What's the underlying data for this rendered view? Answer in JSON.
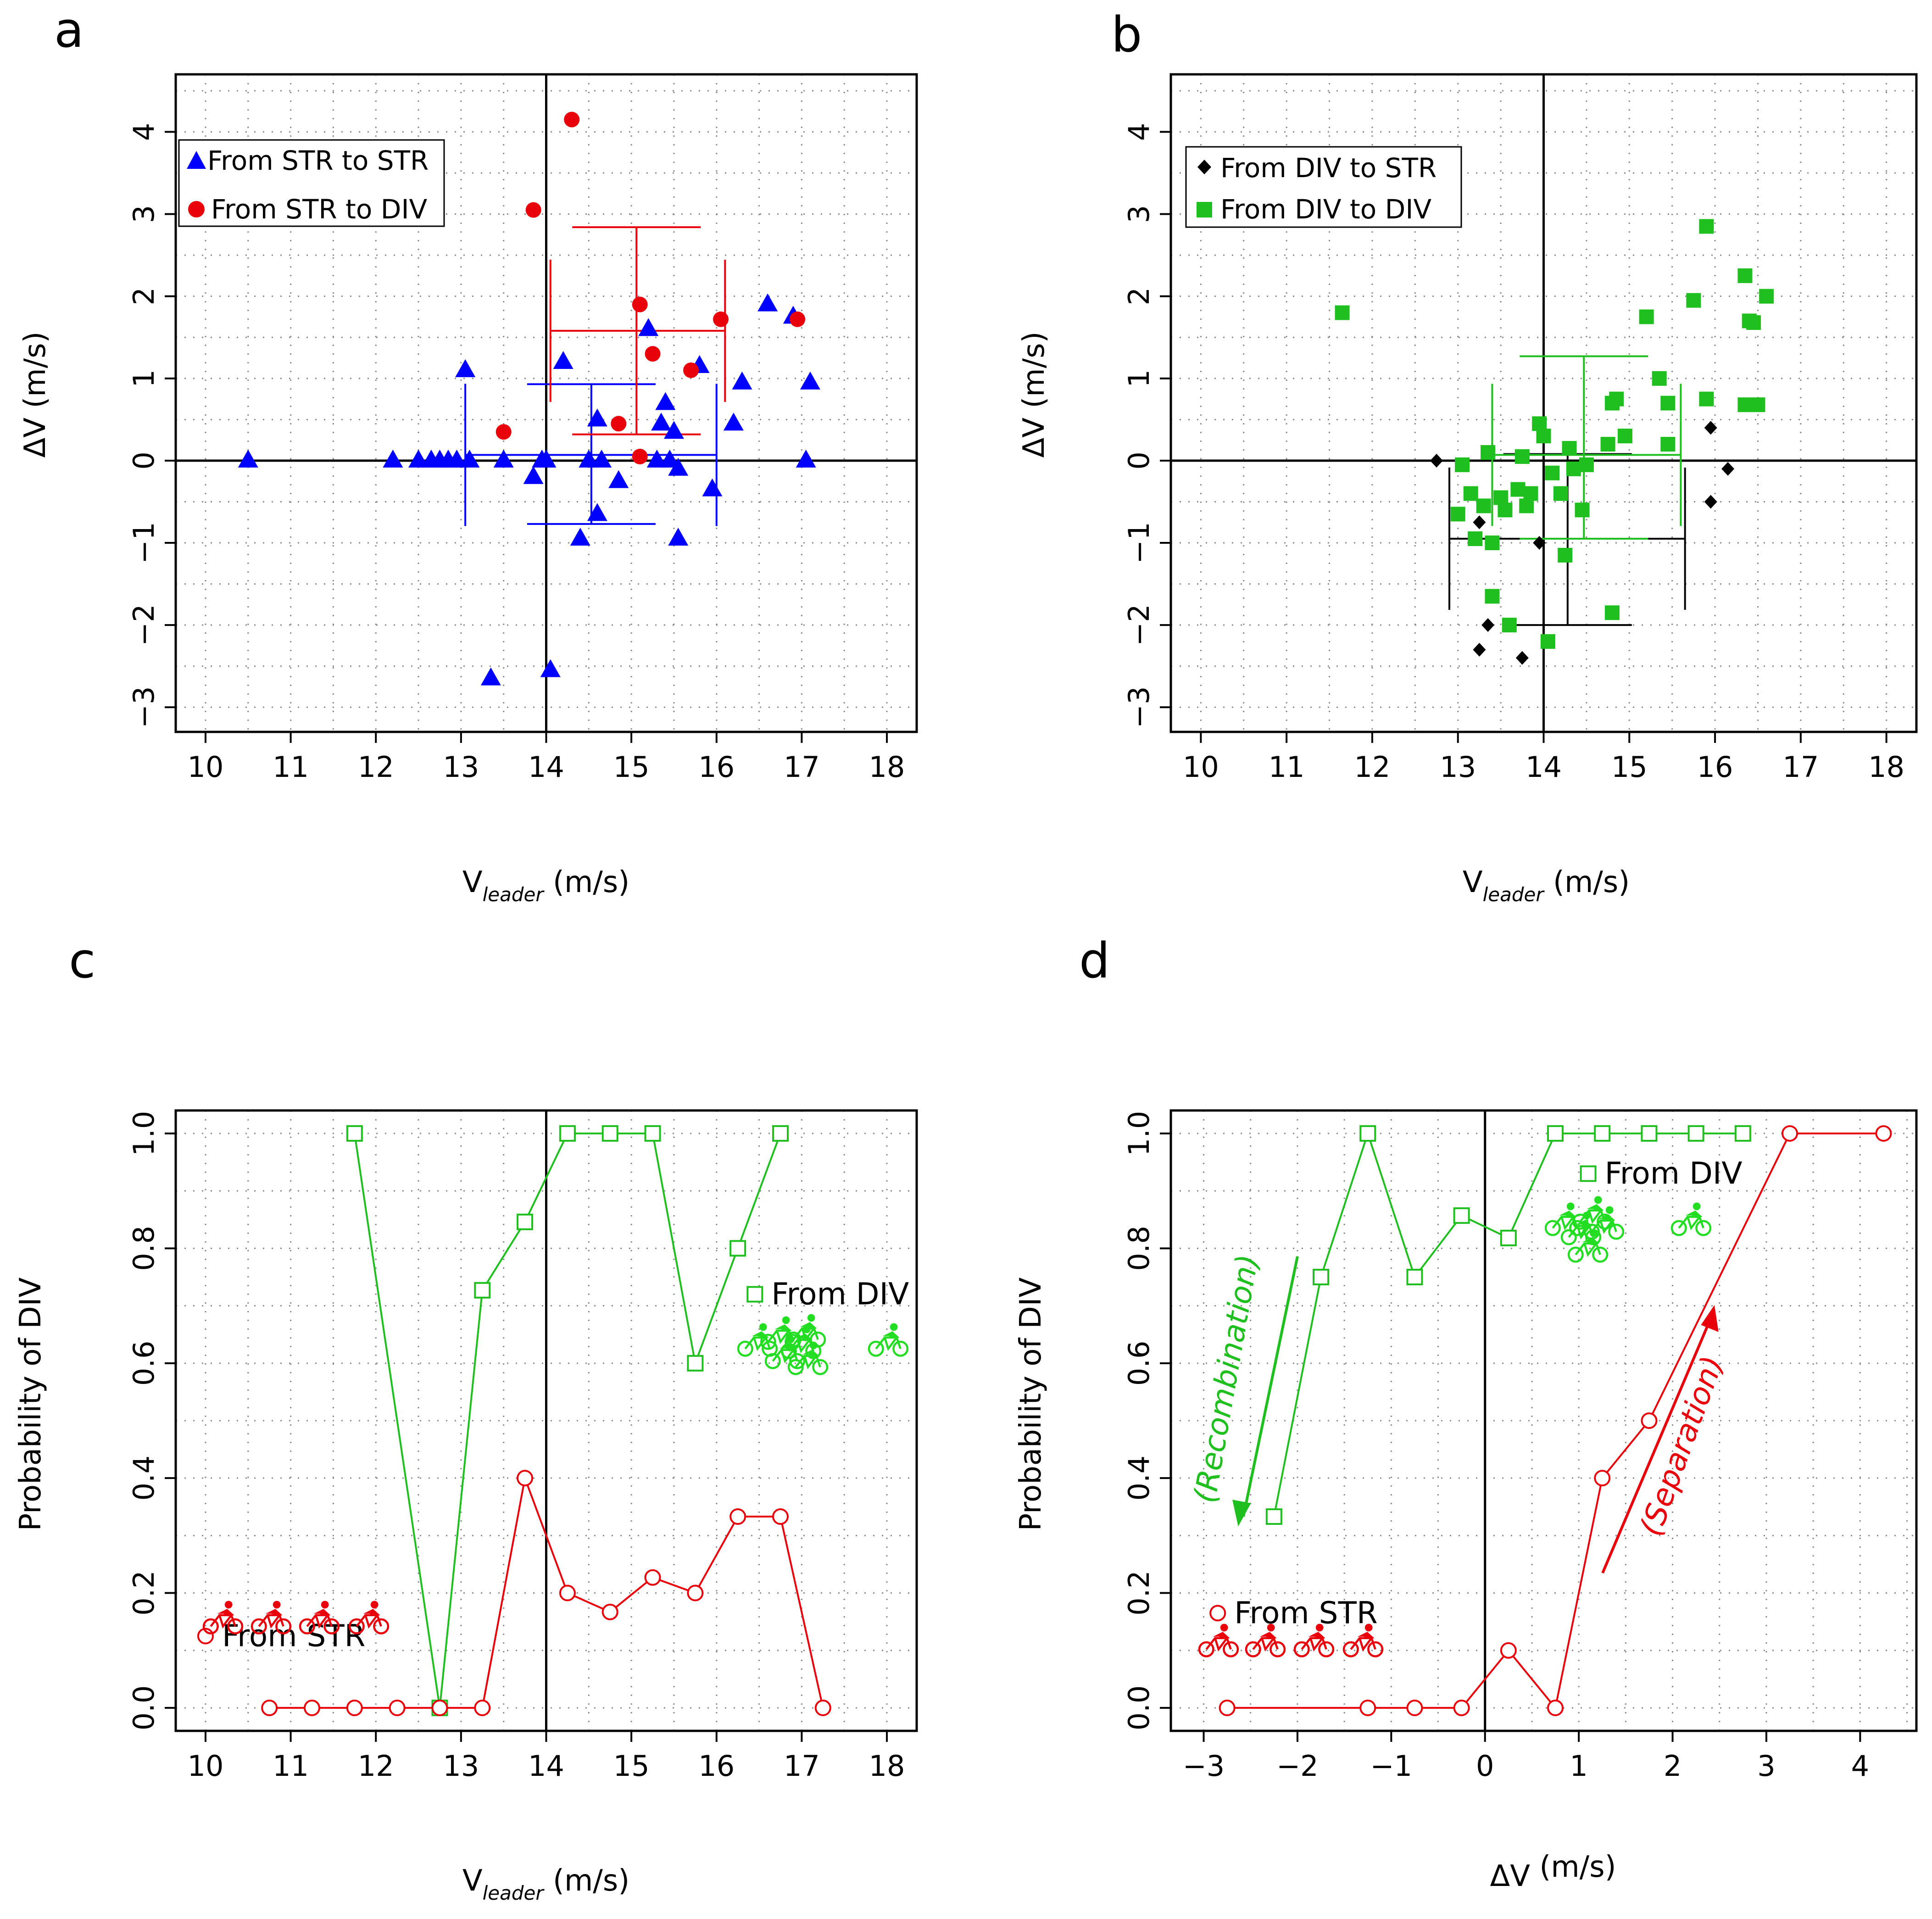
{
  "colors": {
    "blue": "#0000ff",
    "red": "#e8000b",
    "green": "#1fbf1f",
    "black": "#000000",
    "grid": "#8a8a8a",
    "lightgreen": "#22dd22"
  },
  "chart_data": [
    {
      "id": "a",
      "panel_label": "a",
      "type": "scatter",
      "xlabel_main": "V",
      "xlabel_sub": "leader",
      "xlabel_unit": " (m/s)",
      "ylabel": "ΔV (m/s)",
      "xlim": [
        9.65,
        18.35
      ],
      "ylim": [
        -3.3,
        4.7
      ],
      "xticks": [
        "10",
        "11",
        "12",
        "13",
        "14",
        "15",
        "16",
        "17",
        "18"
      ],
      "yticks": [
        "−3",
        "−2",
        "−1",
        "0",
        "1",
        "2",
        "3",
        "4"
      ],
      "vline": 14,
      "hline": 0,
      "legend": [
        {
          "label": "From STR to STR",
          "marker": "triangle",
          "color": "#0000ff"
        },
        {
          "label": "From STR to DIV",
          "marker": "circle",
          "color": "#e8000b"
        }
      ],
      "series": [
        {
          "name": "From STR to STR",
          "marker": "triangle",
          "color": "#0000ff",
          "points": [
            [
              10.5,
              0.0
            ],
            [
              12.2,
              0.0
            ],
            [
              12.5,
              0.0
            ],
            [
              12.65,
              0.0
            ],
            [
              12.75,
              0.0
            ],
            [
              12.85,
              0.0
            ],
            [
              12.95,
              0.0
            ],
            [
              13.1,
              0.0
            ],
            [
              13.05,
              1.1
            ],
            [
              13.5,
              0.0
            ],
            [
              13.85,
              -0.2
            ],
            [
              13.95,
              0.0
            ],
            [
              14.0,
              0.0
            ],
            [
              14.2,
              1.2
            ],
            [
              14.4,
              -0.95
            ],
            [
              14.5,
              0.0
            ],
            [
              14.6,
              0.5
            ],
            [
              14.65,
              0.0
            ],
            [
              14.6,
              -0.65
            ],
            [
              14.85,
              -0.25
            ],
            [
              15.2,
              1.6
            ],
            [
              15.3,
              0.0
            ],
            [
              15.35,
              0.45
            ],
            [
              15.4,
              0.7
            ],
            [
              15.45,
              0.0
            ],
            [
              15.5,
              0.35
            ],
            [
              15.55,
              -0.1
            ],
            [
              15.55,
              -0.95
            ],
            [
              15.8,
              1.15
            ],
            [
              15.95,
              -0.35
            ],
            [
              16.2,
              0.45
            ],
            [
              16.3,
              0.95
            ],
            [
              16.6,
              1.9
            ],
            [
              16.9,
              1.75
            ],
            [
              17.05,
              0.0
            ],
            [
              17.1,
              0.95
            ],
            [
              13.35,
              -2.65
            ],
            [
              14.05,
              -2.55
            ]
          ]
        },
        {
          "name": "From STR to DIV",
          "marker": "circle",
          "color": "#e8000b",
          "points": [
            [
              14.3,
              4.15
            ],
            [
              13.85,
              3.05
            ],
            [
              13.5,
              0.35
            ],
            [
              14.85,
              0.45
            ],
            [
              15.1,
              1.9
            ],
            [
              15.25,
              1.3
            ],
            [
              15.1,
              0.05
            ],
            [
              15.7,
              1.1
            ],
            [
              16.05,
              1.72
            ],
            [
              16.95,
              1.72
            ]
          ]
        }
      ],
      "crosses": [
        {
          "color": "#0000ff",
          "mean": [
            14.53,
            0.07
          ],
          "xsd": [
            13.05,
            16.0
          ],
          "ysd": [
            -0.77,
            0.93
          ]
        },
        {
          "color": "#e8000b",
          "mean": [
            15.06,
            1.58
          ],
          "xsd": [
            14.05,
            16.1
          ],
          "ysd": [
            0.32,
            2.84
          ]
        }
      ]
    },
    {
      "id": "b",
      "panel_label": "b",
      "type": "scatter",
      "xlabel_main": "V",
      "xlabel_sub": "leader",
      "xlabel_unit": " (m/s)",
      "ylabel": "ΔV (m/s)",
      "xlim": [
        9.65,
        18.35
      ],
      "ylim": [
        -3.3,
        4.7
      ],
      "xticks": [
        "10",
        "11",
        "12",
        "13",
        "14",
        "15",
        "16",
        "17",
        "18"
      ],
      "yticks": [
        "−3",
        "−2",
        "−1",
        "0",
        "1",
        "2",
        "3",
        "4"
      ],
      "vline": 14,
      "hline": 0,
      "legend": [
        {
          "label": "From DIV to STR",
          "marker": "diamond",
          "color": "#000000"
        },
        {
          "label": "From DIV to DIV",
          "marker": "square",
          "color": "#1fbf1f"
        }
      ],
      "series": [
        {
          "name": "From DIV to STR",
          "marker": "diamond",
          "color": "#000000",
          "points": [
            [
              12.75,
              0.0
            ],
            [
              13.25,
              -0.75
            ],
            [
              13.35,
              -2.0
            ],
            [
              13.25,
              -2.3
            ],
            [
              13.75,
              -2.4
            ],
            [
              13.95,
              -1.0
            ],
            [
              15.95,
              0.4
            ],
            [
              15.95,
              -0.5
            ],
            [
              16.15,
              -0.1
            ]
          ]
        },
        {
          "name": "From DIV to DIV",
          "marker": "square",
          "color": "#1fbf1f",
          "points": [
            [
              11.65,
              1.8
            ],
            [
              13.0,
              -0.65
            ],
            [
              13.05,
              -0.05
            ],
            [
              13.15,
              -0.4
            ],
            [
              13.2,
              -0.95
            ],
            [
              13.3,
              -0.55
            ],
            [
              13.35,
              0.1
            ],
            [
              13.4,
              -1.0
            ],
            [
              13.4,
              -1.65
            ],
            [
              13.5,
              -0.45
            ],
            [
              13.55,
              -0.6
            ],
            [
              13.6,
              -2.0
            ],
            [
              13.7,
              -0.35
            ],
            [
              13.75,
              0.05
            ],
            [
              13.8,
              -0.55
            ],
            [
              13.85,
              -0.4
            ],
            [
              13.95,
              0.45
            ],
            [
              14.0,
              0.3
            ],
            [
              14.05,
              -2.2
            ],
            [
              14.1,
              -0.15
            ],
            [
              14.2,
              -0.4
            ],
            [
              14.25,
              -1.15
            ],
            [
              14.3,
              0.15
            ],
            [
              14.35,
              -0.1
            ],
            [
              14.45,
              -0.6
            ],
            [
              14.5,
              -0.05
            ],
            [
              14.75,
              0.2
            ],
            [
              14.8,
              0.7
            ],
            [
              14.85,
              0.75
            ],
            [
              14.8,
              -1.85
            ],
            [
              14.95,
              0.3
            ],
            [
              15.2,
              1.75
            ],
            [
              15.35,
              1.0
            ],
            [
              15.45,
              0.7
            ],
            [
              15.45,
              0.2
            ],
            [
              15.75,
              1.95
            ],
            [
              15.9,
              2.85
            ],
            [
              15.9,
              0.75
            ],
            [
              16.35,
              2.25
            ],
            [
              16.4,
              1.7
            ],
            [
              16.45,
              1.68
            ],
            [
              16.35,
              0.68
            ],
            [
              16.5,
              0.68
            ],
            [
              16.6,
              2.0
            ]
          ]
        }
      ],
      "crosses": [
        {
          "color": "#000000",
          "mean": [
            14.28,
            -0.95
          ],
          "xsd": [
            12.9,
            15.65
          ],
          "ysd": [
            -2.0,
            0.08
          ]
        },
        {
          "color": "#1fbf1f",
          "mean": [
            14.47,
            0.07
          ],
          "xsd": [
            13.4,
            15.6
          ],
          "ysd": [
            -0.95,
            1.27
          ]
        }
      ]
    },
    {
      "id": "c",
      "panel_label": "c",
      "type": "line",
      "xlabel_main": "V",
      "xlabel_sub": "leader",
      "xlabel_unit": " (m/s)",
      "ylabel": "Probability of DIV",
      "xlim": [
        9.65,
        18.35
      ],
      "ylim": [
        -0.04,
        1.04
      ],
      "xticks": [
        "10",
        "11",
        "12",
        "13",
        "14",
        "15",
        "16",
        "17",
        "18"
      ],
      "yticks": [
        "0.0",
        "0.2",
        "0.4",
        "0.6",
        "0.8",
        "1.0"
      ],
      "vline": 14,
      "hline": null,
      "series": [
        {
          "name": "From DIV",
          "marker": "square-open",
          "color": "#1fbf1f",
          "x": [
            11.75,
            12.75,
            13.25,
            13.75,
            14.25,
            14.75,
            15.25,
            15.75,
            16.25,
            16.75
          ],
          "y": [
            1.0,
            0.0,
            0.727,
            0.846,
            1.0,
            1.0,
            1.0,
            0.6,
            0.8,
            1.0
          ]
        },
        {
          "name": "From STR",
          "marker": "circle-open",
          "color": "#e8000b",
          "x": [
            10.75,
            11.25,
            11.75,
            12.25,
            12.75,
            13.25,
            13.75,
            14.25,
            14.75,
            15.25,
            15.75,
            16.25,
            16.75,
            17.25
          ],
          "y": [
            0.0,
            0.0,
            0.0,
            0.0,
            0.0,
            0.0,
            0.4,
            0.2,
            0.167,
            0.227,
            0.2,
            0.333,
            0.333,
            0.0
          ]
        }
      ],
      "annotations": [
        {
          "text": "From DIV",
          "x": 16.45,
          "y": 0.72,
          "color": "#1fbf1f",
          "marker": "square-open"
        },
        {
          "text": "From STR",
          "x": 10.0,
          "y": 0.125,
          "color": "#e8000b",
          "marker": "circle-open"
        }
      ]
    },
    {
      "id": "d",
      "panel_label": "d",
      "type": "line",
      "xlabel_main": "ΔV",
      "xlabel_sub": "",
      "xlabel_unit": " (m/s)",
      "ylabel": "Probability of DIV",
      "xlim": [
        -3.35,
        4.6
      ],
      "ylim": [
        -0.04,
        1.04
      ],
      "xticks": [
        "−3",
        "−2",
        "−1",
        "0",
        "1",
        "2",
        "3",
        "4"
      ],
      "yticks": [
        "0.0",
        "0.2",
        "0.4",
        "0.6",
        "0.8",
        "1.0"
      ],
      "vline": 0,
      "hline": null,
      "series": [
        {
          "name": "From DIV",
          "marker": "square-open",
          "color": "#1fbf1f",
          "x": [
            -2.25,
            -1.75,
            -1.25,
            -0.75,
            -0.25,
            0.25,
            0.75,
            1.25,
            1.75,
            2.25,
            2.75
          ],
          "y": [
            0.333,
            0.75,
            1.0,
            0.75,
            0.857,
            0.818,
            1.0,
            1.0,
            1.0,
            1.0,
            1.0
          ]
        },
        {
          "name": "From STR",
          "marker": "circle-open",
          "color": "#e8000b",
          "x": [
            -2.75,
            -1.25,
            -0.75,
            -0.25,
            0.25,
            0.75,
            1.25,
            1.75,
            3.25,
            4.25
          ],
          "y": [
            0.0,
            0.0,
            0.0,
            0.0,
            0.1,
            0.0,
            0.4,
            0.5,
            1.0,
            1.0
          ]
        }
      ],
      "annotations": [
        {
          "text": "From DIV",
          "x": 1.1,
          "y": 0.93,
          "color": "#1fbf1f",
          "marker": "square-open"
        },
        {
          "text": "From STR",
          "x": -2.85,
          "y": 0.165,
          "color": "#e8000b",
          "marker": "circle-open"
        },
        {
          "text": "(Recombination)",
          "x": -2.65,
          "y": 0.57,
          "color": "#1fbf1f",
          "rotate": -80
        },
        {
          "text": "(Separation)",
          "x": 2.2,
          "y": 0.45,
          "color": "#e8000b",
          "rotate": -70
        }
      ]
    }
  ]
}
